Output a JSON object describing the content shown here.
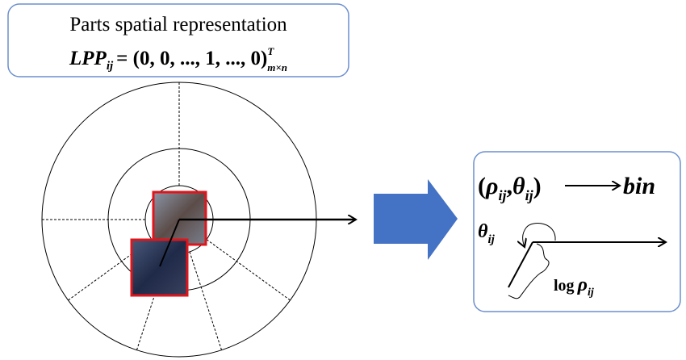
{
  "top_box": {
    "title": "Parts spatial representation",
    "formula": {
      "base": "LPP",
      "base_sub": "ij",
      "body": "= (0, 0, ..., 1, ..., 0)",
      "sup": "T",
      "sub": "m×n"
    }
  },
  "right_box": {
    "mapping": {
      "open": "(",
      "rho": "ρ",
      "rho_sub": "ij",
      "separator": ",",
      "theta": "θ",
      "theta_sub": "ij",
      "close": ")",
      "target": "bin"
    },
    "angle_label": {
      "symbol": "θ",
      "sub": "ij"
    },
    "length_label": {
      "prefix": "log",
      "symbol": "ρ",
      "sub": "ij"
    }
  }
}
